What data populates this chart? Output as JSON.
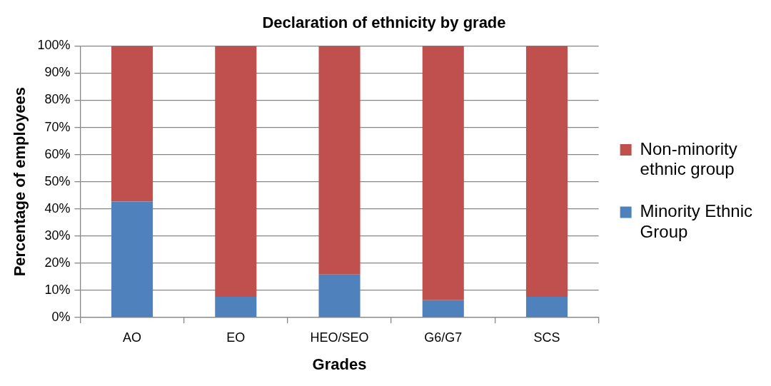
{
  "chart_data": {
    "type": "bar",
    "title": "Declaration of ethnicity by grade",
    "xlabel": "Grades",
    "ylabel": "Percentage of employees",
    "categories": [
      "AO",
      "EO",
      "HEO/SEO",
      "G6/G7",
      "SCS"
    ],
    "series": [
      {
        "name": "Minority Ethnic Group",
        "color": "#4f81bd",
        "values": [
          42.7,
          7.6,
          15.8,
          6.4,
          7.6
        ]
      },
      {
        "name": "Non-minority ethnic group",
        "color": "#c0504d",
        "values": [
          57.3,
          92.4,
          84.2,
          93.6,
          92.4
        ]
      }
    ],
    "stacked": true,
    "ylim": [
      0,
      100
    ],
    "yticks": [
      {
        "value": 0,
        "label": "0%"
      },
      {
        "value": 10,
        "label": "10%"
      },
      {
        "value": 20,
        "label": "20%"
      },
      {
        "value": 30,
        "label": "30%"
      },
      {
        "value": 40,
        "label": "40%"
      },
      {
        "value": 50,
        "label": "50%"
      },
      {
        "value": 60,
        "label": "60%"
      },
      {
        "value": 70,
        "label": "70%"
      },
      {
        "value": 80,
        "label": "80%"
      },
      {
        "value": 90,
        "label": "90%"
      },
      {
        "value": 100,
        "label": "100%"
      }
    ],
    "grid": "y",
    "legend": "right"
  }
}
